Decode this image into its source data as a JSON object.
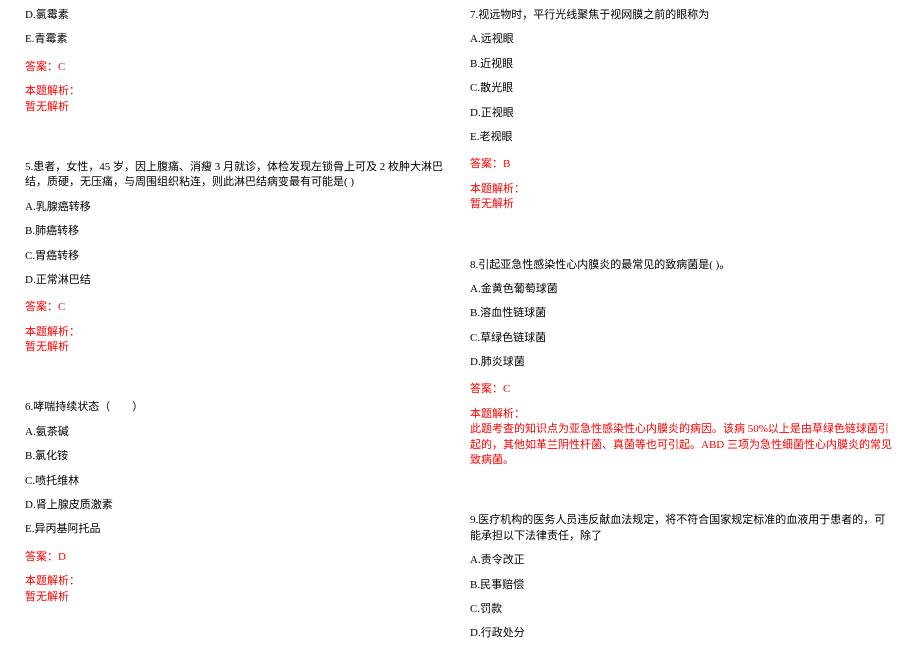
{
  "text_color": "#000000",
  "accent_color": "#ff0000",
  "background_color": "#ffffff",
  "font_size": 11,
  "left_column": {
    "q_prefix": {
      "opt_d": "D.氯霉素",
      "opt_e": "E.青霉素",
      "answer": "答案：C",
      "analysis_label": "本题解析：",
      "analysis_content": "暂无解析"
    },
    "q5": {
      "stem": "5.患者，女性，45 岁，因上腹痛、消瘦 3 月就诊，体检发现左锁骨上可及 2 枚肿大淋巴结，质硬，无压痛，与周围组织粘连，则此淋巴结病变最有可能是(   )",
      "opt_a": "A.乳腺癌转移",
      "opt_b": "B.肺癌转移",
      "opt_c": "C.胃癌转移",
      "opt_d": "D.正常淋巴结",
      "answer": "答案：C",
      "analysis_label": "本题解析：",
      "analysis_content": "暂无解析"
    },
    "q6": {
      "stem": "6.哮喘持续状态（　　）",
      "opt_a": "A.氨茶碱",
      "opt_b": "B.氯化铵",
      "opt_c": "C.喷托维林",
      "opt_d": "D.肾上腺皮质激素",
      "opt_e": "E.异丙基阿托品",
      "answer": "答案：D",
      "analysis_label": "本题解析：",
      "analysis_content": "暂无解析"
    }
  },
  "right_column": {
    "q7": {
      "stem": "7.视远物时，平行光线聚焦于视网膜之前的眼称为",
      "opt_a": "A.远视眼",
      "opt_b": "B.近视眼",
      "opt_c": "C.散光眼",
      "opt_d": "D.正视眼",
      "opt_e": "E.老视眼",
      "answer": "答案：B",
      "analysis_label": "本题解析：",
      "analysis_content": "暂无解析"
    },
    "q8": {
      "stem": "8.引起亚急性感染性心内膜炎的最常见的致病菌是(   )。",
      "opt_a": "A.金黄色葡萄球菌",
      "opt_b": "B.溶血性链球菌",
      "opt_c": "C.草绿色链球菌",
      "opt_d": "D.肺炎球菌",
      "answer": "答案：C",
      "analysis_label": "本题解析：",
      "analysis_content": "此题考查的知识点为亚急性感染性心内膜炎的病因。该病 50%以上是由草绿色链球菌引起的，其他如革兰阴性杆菌、真菌等也可引起。ABD 三项为急性细菌性心内膜炎的常见致病菌。"
    },
    "q9": {
      "stem": "9.医疗机构的医务人员违反献血法规定，将不符合国家规定标准的血液用于患者的，可能承担以下法律责任，除了",
      "opt_a": "A.责令改正",
      "opt_b": "B.民事赔偿",
      "opt_c": "C.罚款",
      "opt_d": "D.行政处分"
    }
  }
}
